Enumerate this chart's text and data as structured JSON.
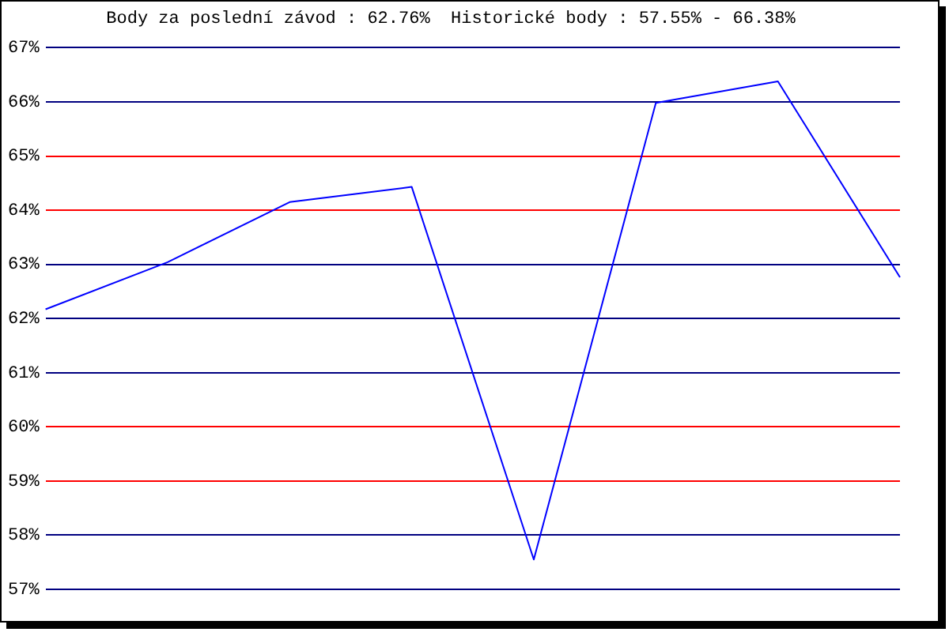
{
  "chart_data": {
    "type": "line",
    "title": "Body za poslední závod : 62.76%  Historické body : 57.55% - 66.38%",
    "categories": [
      null,
      null,
      null,
      null,
      null,
      null,
      null,
      null
    ],
    "series": [
      {
        "color": "#0000ff",
        "values": [
          62.17,
          63.04,
          64.15,
          64.43,
          57.55,
          65.98,
          66.38,
          62.76
        ]
      }
    ],
    "ylim": [
      57,
      67
    ],
    "yticks": [
      {
        "value": 57,
        "label": "57%"
      },
      {
        "value": 58,
        "label": "58%"
      },
      {
        "value": 59,
        "label": "59%"
      },
      {
        "value": 60,
        "label": "60%"
      },
      {
        "value": 61,
        "label": "61%"
      },
      {
        "value": 62,
        "label": "62%"
      },
      {
        "value": 63,
        "label": "63%"
      },
      {
        "value": 64,
        "label": "64%"
      },
      {
        "value": 65,
        "label": "65%"
      },
      {
        "value": 66,
        "label": "66%"
      },
      {
        "value": 67,
        "label": "67%"
      }
    ],
    "grid": "y",
    "legend": false,
    "marker": "none",
    "line_style": "solid"
  }
}
